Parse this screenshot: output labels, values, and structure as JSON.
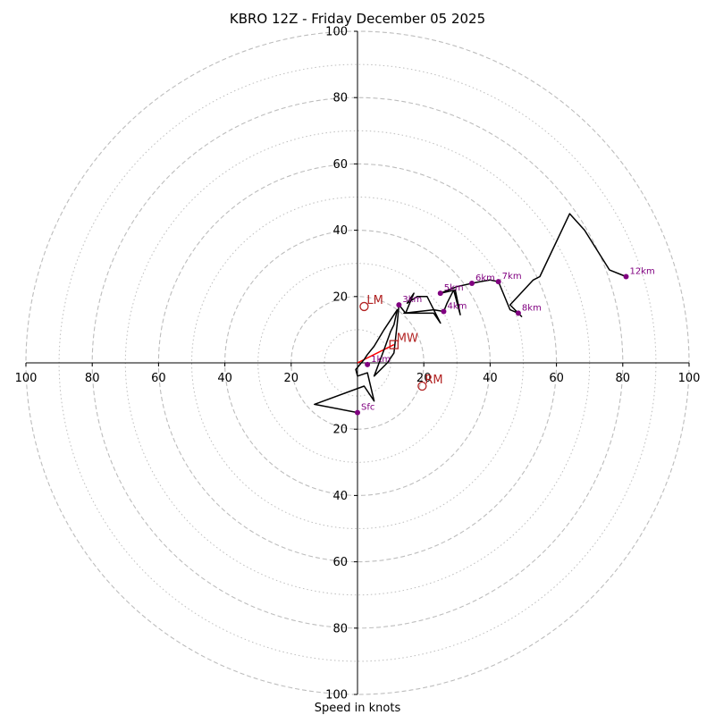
{
  "chart_data": {
    "type": "hodograph",
    "title": "KBRO 12Z - Friday December 05 2025",
    "xlabel": "Speed in knots",
    "range": [
      -100,
      100
    ],
    "ring_major": [
      20,
      40,
      60,
      80,
      100
    ],
    "ring_minor": [
      10,
      30,
      50,
      70,
      90
    ],
    "x_ticks": [
      {
        "v": -100,
        "label": "100"
      },
      {
        "v": -80,
        "label": "80"
      },
      {
        "v": -60,
        "label": "60"
      },
      {
        "v": -40,
        "label": "40"
      },
      {
        "v": -20,
        "label": "20"
      },
      {
        "v": 20,
        "label": "20"
      },
      {
        "v": 40,
        "label": "40"
      },
      {
        "v": 60,
        "label": "60"
      },
      {
        "v": 80,
        "label": "80"
      },
      {
        "v": 100,
        "label": "100"
      }
    ],
    "y_ticks": [
      {
        "v": 100,
        "label": "100"
      },
      {
        "v": 80,
        "label": "80"
      },
      {
        "v": 60,
        "label": "60"
      },
      {
        "v": 40,
        "label": "40"
      },
      {
        "v": 20,
        "label": "20"
      },
      {
        "v": -20,
        "label": "20"
      },
      {
        "v": -40,
        "label": "40"
      },
      {
        "v": -60,
        "label": "60"
      },
      {
        "v": -80,
        "label": "80"
      },
      {
        "v": -100,
        "label": "100"
      }
    ],
    "trace": [
      [
        0,
        -15
      ],
      [
        -13,
        -12.5
      ],
      [
        2,
        -7
      ],
      [
        5,
        -11.5
      ],
      [
        3,
        -3
      ],
      [
        0,
        -4
      ],
      [
        -0.5,
        -2
      ],
      [
        2,
        1
      ],
      [
        3,
        2.5
      ],
      [
        5,
        5
      ],
      [
        8,
        10
      ],
      [
        12,
        16
      ],
      [
        11,
        11.5
      ],
      [
        10,
        9.5
      ],
      [
        8,
        4
      ],
      [
        5,
        -4
      ],
      [
        9,
        0
      ],
      [
        11,
        3
      ],
      [
        12,
        12
      ],
      [
        12.5,
        17.5
      ],
      [
        14.5,
        15
      ],
      [
        17,
        21
      ],
      [
        15,
        18
      ],
      [
        18,
        20
      ],
      [
        21,
        20
      ],
      [
        25,
        12
      ],
      [
        23,
        15
      ],
      [
        14,
        15
      ],
      [
        23,
        16
      ],
      [
        26,
        15.5
      ],
      [
        27,
        18
      ],
      [
        29,
        22
      ],
      [
        31,
        14.5
      ],
      [
        29.5,
        22
      ],
      [
        25,
        21
      ],
      [
        30,
        23
      ],
      [
        34.5,
        24
      ],
      [
        37,
        24.5
      ],
      [
        40,
        25
      ],
      [
        42.5,
        24.5
      ],
      [
        46,
        16
      ],
      [
        48.5,
        15
      ],
      [
        49.5,
        14
      ],
      [
        46,
        17.5
      ],
      [
        53,
        25
      ],
      [
        55,
        26
      ],
      [
        64,
        45
      ],
      [
        68.5,
        40
      ],
      [
        76,
        28
      ],
      [
        81,
        26
      ]
    ],
    "height_markers": [
      {
        "label": "Sfc",
        "u": 0,
        "v": -15
      },
      {
        "label": "1km",
        "u": 3,
        "v": -0.5
      },
      {
        "label": "3km",
        "u": 12.5,
        "v": 17.5
      },
      {
        "label": "4km",
        "u": 26,
        "v": 15.5
      },
      {
        "label": "5km",
        "u": 25,
        "v": 21
      },
      {
        "label": "6km",
        "u": 34.5,
        "v": 24
      },
      {
        "label": "7km",
        "u": 42.5,
        "v": 24.5
      },
      {
        "label": "8km",
        "u": 48.5,
        "v": 15
      },
      {
        "label": "12km",
        "u": 81,
        "v": 26
      }
    ],
    "storm_motion": [
      {
        "label": "LM",
        "u": 2,
        "v": 17
      },
      {
        "label": "RM",
        "u": 19.5,
        "v": -7
      },
      {
        "label": "MW",
        "u": 11,
        "v": 5.5
      }
    ],
    "shear_vector": {
      "from": [
        0,
        0
      ],
      "to": [
        11,
        5.5
      ]
    },
    "colors": {
      "trace": "#000000",
      "markers": "#800080",
      "storm": "#b22222",
      "shear": "#ff0000",
      "ring": "#bdbdbd",
      "axis": "#000000"
    }
  }
}
